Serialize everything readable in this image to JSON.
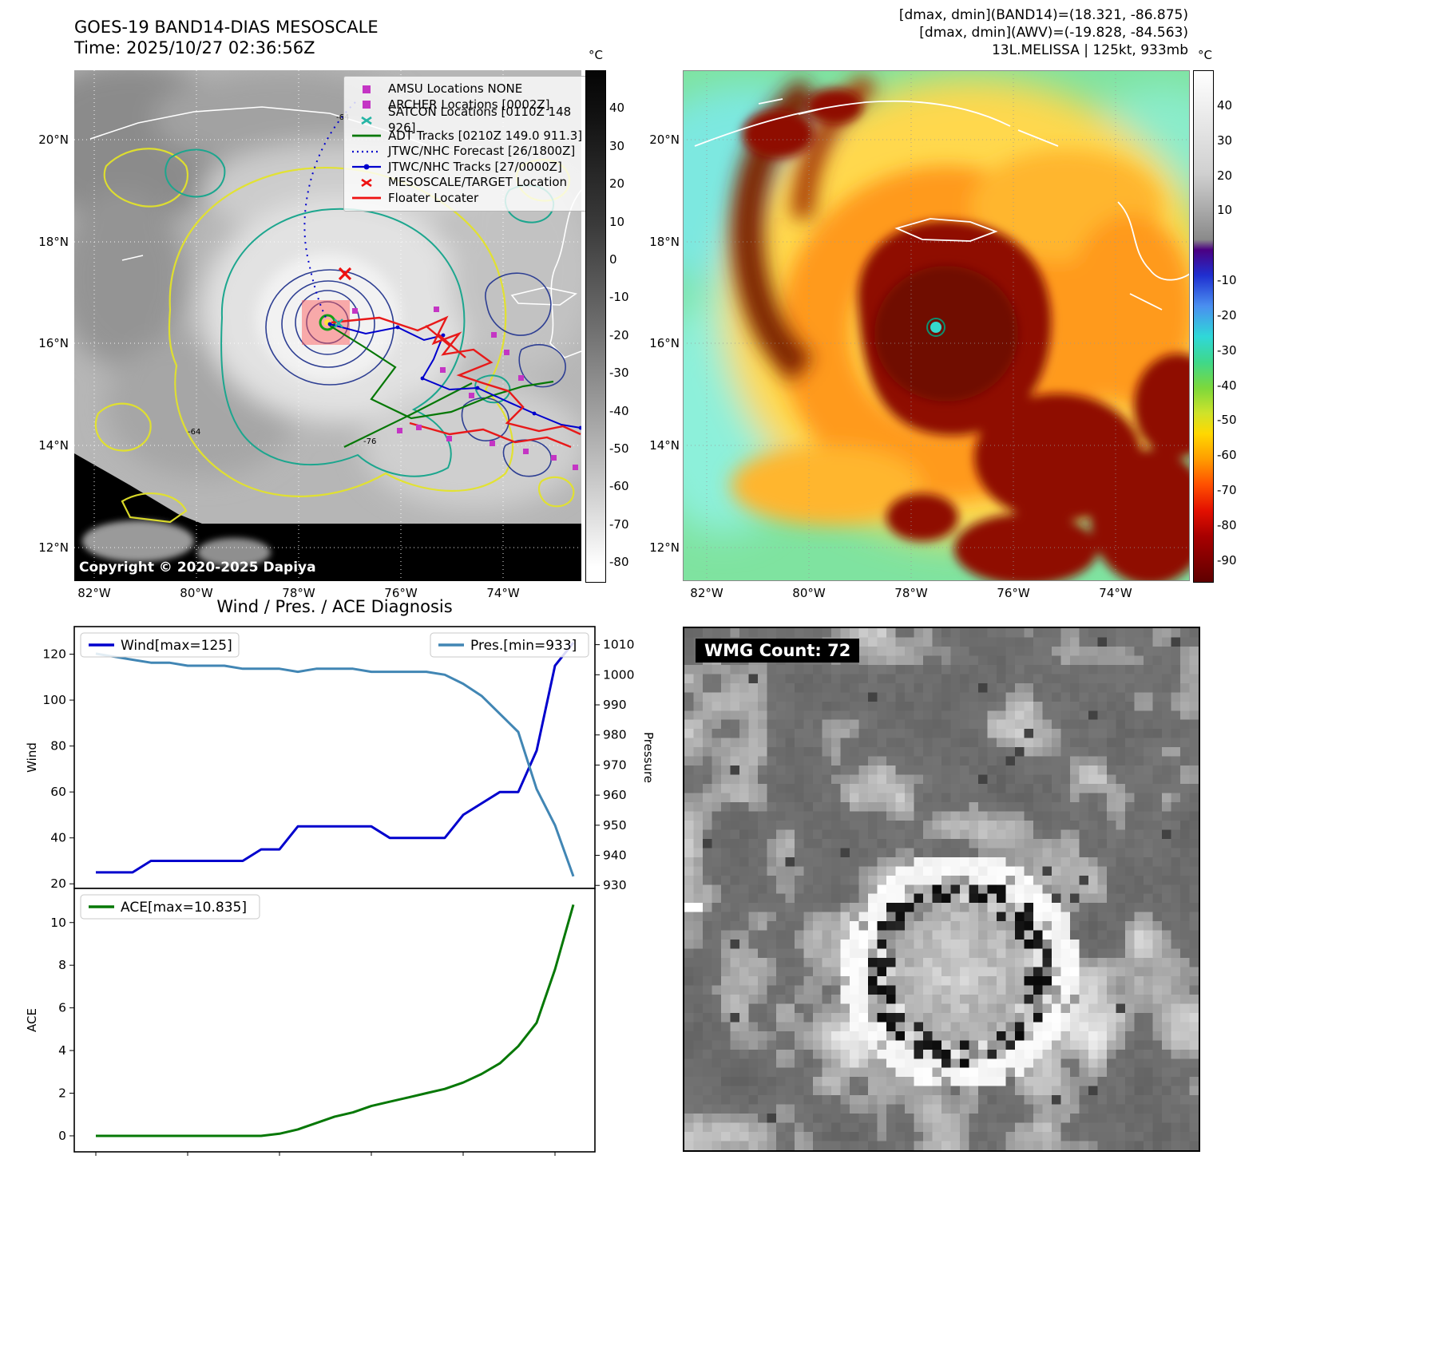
{
  "panel_tl": {
    "title": "GOES-19 BAND14-DIAS MESOSCALE",
    "time_line": "Time: 2025/10/27 02:36:56Z",
    "copyright": "Copyright © 2020-2025 Dapiya",
    "lat_ticks": [
      "20°N",
      "18°N",
      "16°N",
      "14°N",
      "12°N"
    ],
    "lon_ticks": [
      "82°W",
      "80°W",
      "78°W",
      "76°W",
      "74°W"
    ],
    "colorbar": {
      "unit": "°C",
      "vmax": 50,
      "vmin": -85,
      "ticks": [
        40,
        30,
        20,
        10,
        0,
        -10,
        -20,
        -30,
        -40,
        -50,
        -60,
        -70,
        -80
      ]
    },
    "legend": [
      {
        "label": "AMSU Locations NONE",
        "marker": "square",
        "color": "#c435c4"
      },
      {
        "label": "ARCHER Locations [0002Z]",
        "marker": "square",
        "color": "#c435c4"
      },
      {
        "label": "SATCON Locations [0110Z 148 926]",
        "marker": "x",
        "color": "#25b5a5"
      },
      {
        "label": "ADT Tracks [0210Z 149.0 911.3]",
        "marker": "line",
        "color": "#067806"
      },
      {
        "label": "JTWC/NHC Forecast [26/1800Z]",
        "marker": "dotted-line",
        "color": "#0000cd"
      },
      {
        "label": "JTWC/NHC Tracks [27/0000Z]",
        "marker": "line-marker",
        "color": "#0000cd"
      },
      {
        "label": "MESOSCALE/TARGET Location",
        "marker": "x",
        "color": "#ee1111"
      },
      {
        "label": "Floater Locater",
        "marker": "line",
        "color": "#ee1111"
      }
    ],
    "contour_labels": [
      "-64",
      "-64",
      "-76"
    ]
  },
  "panel_tr": {
    "header_lines": [
      "[dmax, dmin](BAND14)=(18.321, -86.875)",
      "[dmax, dmin](AWV)=(-19.828, -84.563)",
      "13L.MELISSA | 125kt, 933mb"
    ],
    "lat_ticks": [
      "20°N",
      "18°N",
      "16°N",
      "14°N",
      "12°N"
    ],
    "lon_ticks": [
      "82°W",
      "80°W",
      "78°W",
      "76°W",
      "74°W"
    ],
    "colorbar": {
      "unit": "°C",
      "vmax": 50,
      "vmin": -96,
      "ticks": [
        40,
        30,
        20,
        10,
        -10,
        -20,
        -30,
        -40,
        -50,
        -60,
        -70,
        -80,
        -90
      ]
    }
  },
  "charts": {
    "title": "Wind / Pres. / ACE Diagnosis"
  },
  "chart_data": [
    {
      "type": "line",
      "title": "Wind / Pres. / ACE Diagnosis",
      "x_axis": {
        "labels_visible": false,
        "n_points": 27
      },
      "series": [
        {
          "name": "Wind[max=125]",
          "axis": "left",
          "color": "#0000cd",
          "values": [
            25,
            25,
            25,
            30,
            30,
            30,
            30,
            30,
            30,
            35,
            35,
            45,
            45,
            45,
            45,
            45,
            40,
            40,
            40,
            40,
            50,
            55,
            60,
            60,
            78,
            115,
            125
          ]
        },
        {
          "name": "Pres.[min=933]",
          "axis": "right",
          "color": "#4186b4",
          "values": [
            1007,
            1006,
            1005,
            1004,
            1004,
            1003,
            1003,
            1003,
            1002,
            1002,
            1002,
            1001,
            1002,
            1002,
            1002,
            1001,
            1001,
            1001,
            1001,
            1000,
            997,
            993,
            987,
            981,
            962,
            950,
            933
          ]
        }
      ],
      "left_axis": {
        "label": "Wind",
        "ticks": [
          20,
          40,
          60,
          80,
          100,
          120
        ],
        "ylim": [
          18,
          132
        ]
      },
      "right_axis": {
        "label": "Pressure",
        "ticks": [
          930,
          940,
          950,
          960,
          970,
          980,
          990,
          1000,
          1010
        ],
        "ylim": [
          929,
          1016
        ]
      },
      "legend_position": "top-left and top-right"
    },
    {
      "type": "line",
      "x_axis": {
        "labels_visible": false,
        "n_points": 27
      },
      "series": [
        {
          "name": "ACE[max=10.835]",
          "axis": "left",
          "color": "#067806",
          "values": [
            0,
            0,
            0,
            0,
            0,
            0,
            0,
            0,
            0,
            0,
            0.1,
            0.3,
            0.6,
            0.9,
            1.1,
            1.4,
            1.6,
            1.8,
            2.0,
            2.2,
            2.5,
            2.9,
            3.4,
            4.2,
            5.3,
            7.8,
            10.835
          ]
        }
      ],
      "left_axis": {
        "label": "ACE",
        "ticks": [
          0,
          2,
          4,
          6,
          8,
          10
        ],
        "ylim": [
          -0.75,
          11.6
        ]
      },
      "legend_position": "top-left"
    }
  ],
  "panel_br": {
    "wmg_label": "WMG Count: 72"
  }
}
